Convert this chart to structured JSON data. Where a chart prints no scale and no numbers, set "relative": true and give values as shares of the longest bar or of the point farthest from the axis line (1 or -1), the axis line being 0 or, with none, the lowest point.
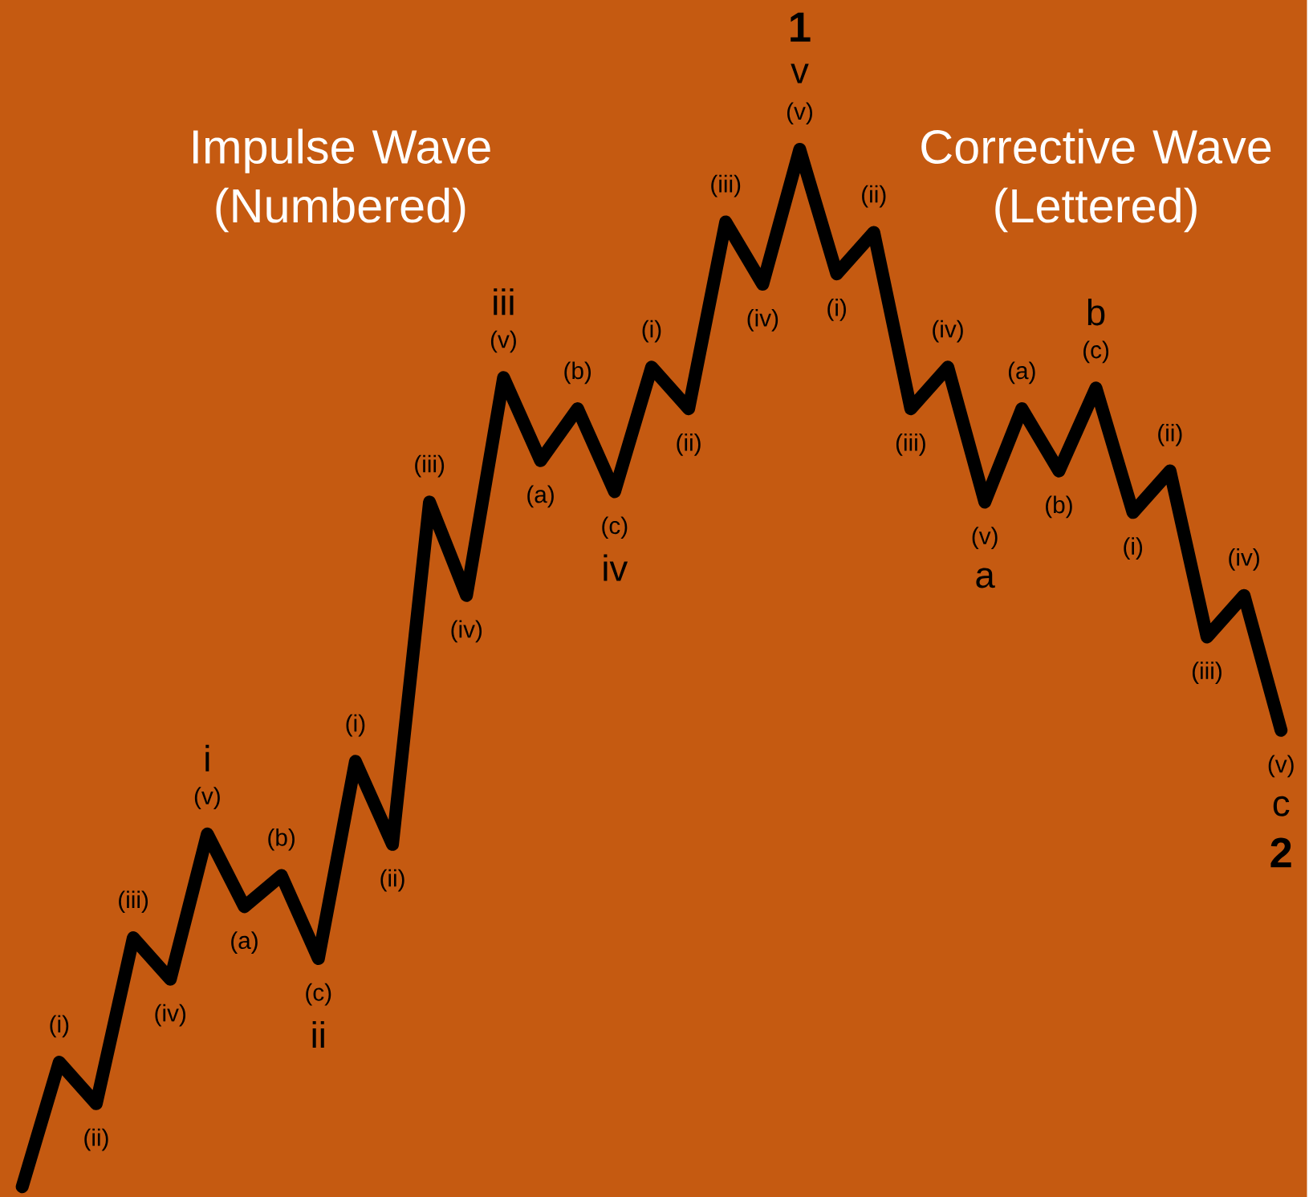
{
  "chart_data": {
    "type": "line",
    "relative": true,
    "color": "#000000",
    "line_style": "solid",
    "categories": [
      null,
      null,
      null,
      null,
      null,
      null,
      null,
      null,
      null,
      null,
      null,
      null,
      null,
      null,
      null,
      null,
      null,
      null,
      null,
      null,
      null,
      null,
      null,
      null,
      null,
      null,
      null,
      null,
      null,
      null,
      null,
      null,
      null,
      null,
      null
    ],
    "values": [
      0,
      0.12,
      0.08,
      0.24,
      0.2,
      0.34,
      0.27,
      0.3,
      0.22,
      0.41,
      0.33,
      0.66,
      0.57,
      0.78,
      0.7,
      0.75,
      0.67,
      0.79,
      0.75,
      0.93,
      0.87,
      1,
      0.88,
      0.92,
      0.75,
      0.79,
      0.66,
      0.75,
      0.69,
      0.77,
      0.65,
      0.69,
      0.53,
      0.57,
      0.44
    ],
    "annotations": [
      "Impulse Wave (Numbered)",
      "Corrective Wave (Lettered)",
      {
        "text": "(i)",
        "y": 0.12
      },
      {
        "text": "(ii)",
        "y": 0.08
      },
      {
        "text": "(iii)",
        "y": 0.24
      },
      {
        "text": "(iv)",
        "y": 0.2
      },
      {
        "text": "(v)",
        "y": 0.34
      },
      {
        "text": "i",
        "y": 0.34
      },
      {
        "text": "(a)",
        "y": 0.27
      },
      {
        "text": "(b)",
        "y": 0.3
      },
      {
        "text": "(c)",
        "y": 0.22
      },
      {
        "text": "ii",
        "y": 0.22
      },
      {
        "text": "(i)",
        "y": 0.41
      },
      {
        "text": "(ii)",
        "y": 0.33
      },
      {
        "text": "(iii)",
        "y": 0.66
      },
      {
        "text": "(iv)",
        "y": 0.57
      },
      {
        "text": "(v)",
        "y": 0.78
      },
      {
        "text": "iii",
        "y": 0.78
      },
      {
        "text": "(a)",
        "y": 0.7
      },
      {
        "text": "(b)",
        "y": 0.75
      },
      {
        "text": "(c)",
        "y": 0.67
      },
      {
        "text": "iv",
        "y": 0.67
      },
      {
        "text": "(i)",
        "y": 0.79
      },
      {
        "text": "(ii)",
        "y": 0.75
      },
      {
        "text": "(iii)",
        "y": 0.93
      },
      {
        "text": "(iv)",
        "y": 0.87
      },
      {
        "text": "(v)",
        "y": 1
      },
      {
        "text": "v",
        "y": 1
      },
      {
        "text": "1",
        "y": 1
      },
      {
        "text": "(i)",
        "y": 0.88
      },
      {
        "text": "(ii)",
        "y": 0.92
      },
      {
        "text": "(iii)",
        "y": 0.75
      },
      {
        "text": "(iv)",
        "y": 0.79
      },
      {
        "text": "(v)",
        "y": 0.66
      },
      {
        "text": "a",
        "y": 0.66
      },
      {
        "text": "(a)",
        "y": 0.75
      },
      {
        "text": "(b)",
        "y": 0.69
      },
      {
        "text": "(c)",
        "y": 0.77
      },
      {
        "text": "b",
        "y": 0.77
      },
      {
        "text": "(i)",
        "y": 0.65
      },
      {
        "text": "(ii)",
        "y": 0.69
      },
      {
        "text": "(iii)",
        "y": 0.53
      },
      {
        "text": "(iv)",
        "y": 0.57
      },
      {
        "text": "(v)",
        "y": 0.44
      },
      {
        "text": "c",
        "y": 0.44
      },
      {
        "text": "2",
        "y": 0.44
      }
    ]
  }
}
